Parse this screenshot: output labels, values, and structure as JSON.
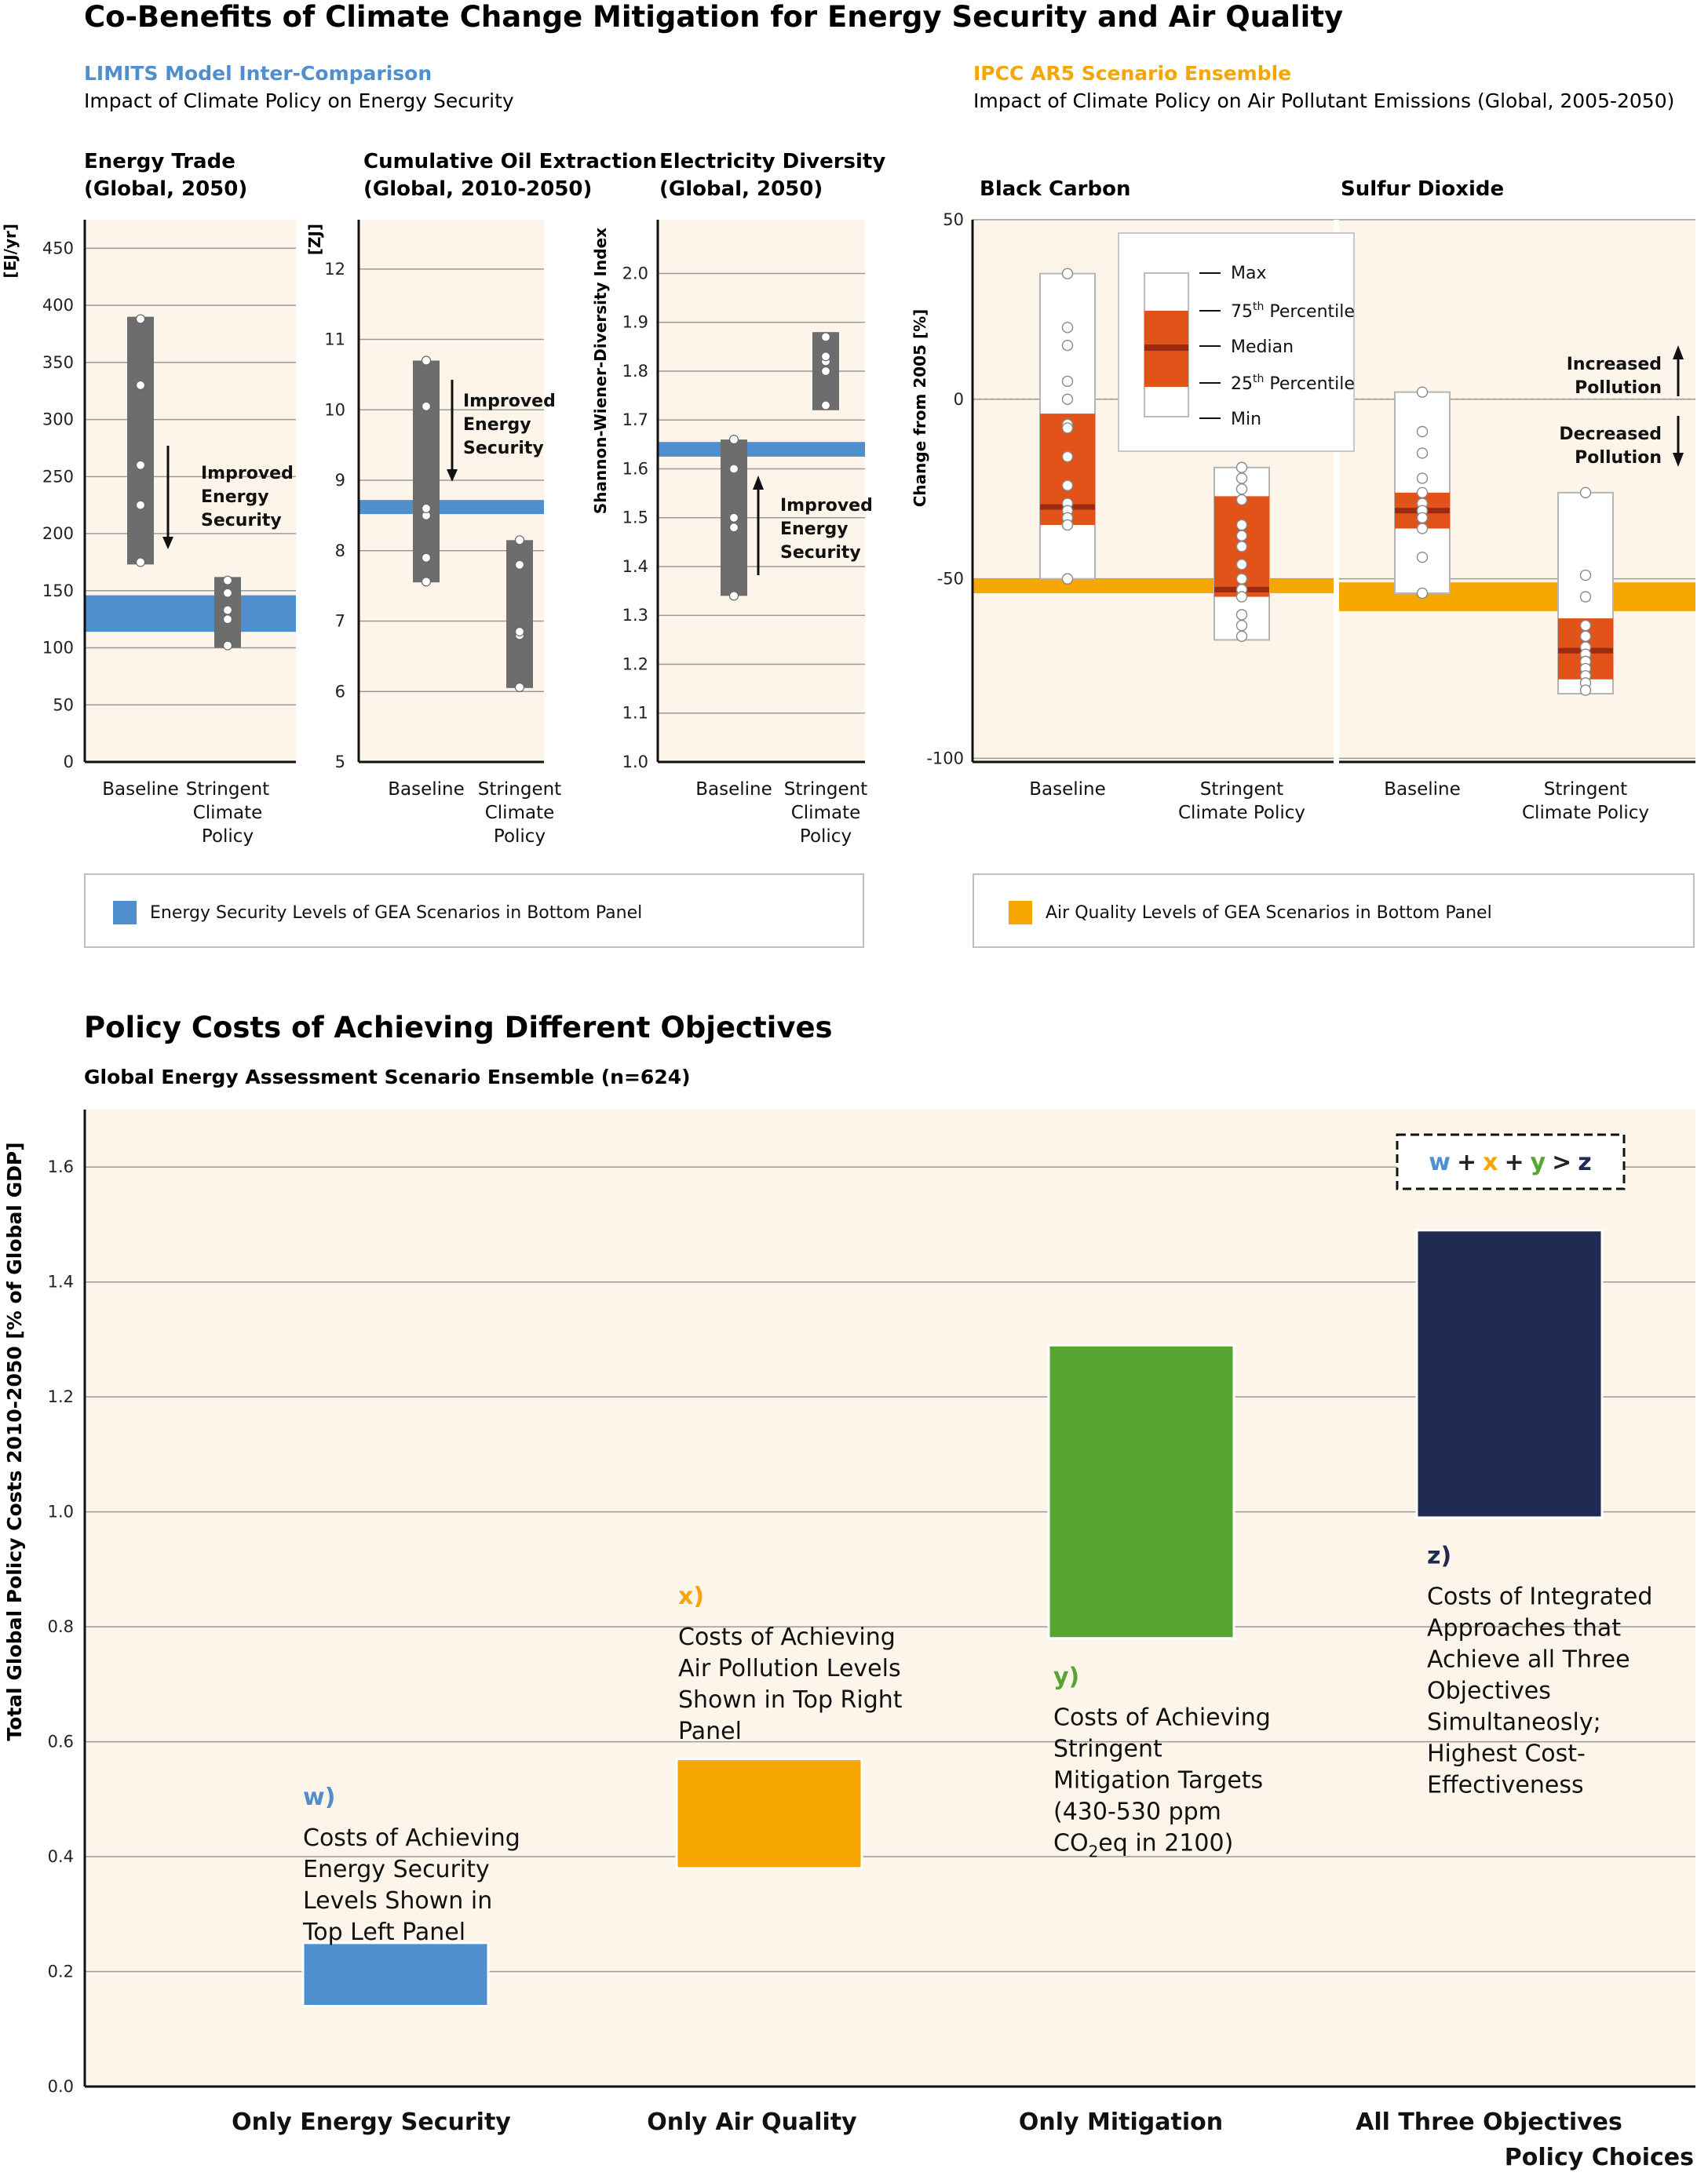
{
  "title": "Co-Benefits of Climate Change Mitigation for Energy Security and Air Quality",
  "left_block": {
    "source": "LIMITS Model Inter-Comparison",
    "subtitle": "Impact of Climate Policy on Energy Security",
    "legend": "Energy Security Levels of GEA Scenarios in Bottom Panel"
  },
  "right_block": {
    "source": "IPCC AR5 Scenario Ensemble",
    "subtitle": "Impact of Climate Policy on Air Pollutant Emissions (Global, 2005-2050)",
    "legend": "Air Quality Levels of GEA Scenarios in Bottom Panel"
  },
  "bottom_block": {
    "title": "Policy Costs of Achieving Different Objectives",
    "subtitle": "Global Energy Assessment Scenario Ensemble (n=624)"
  },
  "annotations": {
    "improved": [
      "Improved",
      "Energy",
      "Security"
    ],
    "increased": [
      "Increased",
      "Pollution"
    ],
    "decreased": [
      "Decreased",
      "Pollution"
    ],
    "boxplot_key": [
      "Max",
      "75",
      "th",
      " Percentile",
      "Median",
      "25",
      "th",
      " Percentile",
      "Min"
    ],
    "cost_letters": {
      "w": "w",
      "x": "x",
      "y": "y",
      "z": "z",
      "plus": "+",
      "gt": ">"
    }
  },
  "colors": {
    "panel_bg": "#fdf5e9",
    "energy_blue": "#4f8fcd",
    "air_orange": "#f5a600",
    "mitigation_green": "#57a532",
    "integrated_navy": "#1f2b52",
    "range_gray": "#6d6d6d",
    "iqr_red": "#e2531a",
    "median_dark": "#9a2b12"
  },
  "chart_data": [
    {
      "type": "range",
      "title": [
        "Energy Trade",
        "(Global, 2050)"
      ],
      "ylabel": "[EJ/yr]",
      "ylim": [
        0,
        475
      ],
      "yticks": [
        0,
        50,
        100,
        150,
        200,
        250,
        300,
        350,
        400,
        450
      ],
      "categories": [
        [
          "Baseline"
        ],
        [
          "Stringent",
          "Climate",
          "Policy"
        ]
      ],
      "series": [
        {
          "category": "Baseline",
          "min": 173,
          "max": 390,
          "points": [
            175,
            225,
            260,
            330,
            388
          ]
        },
        {
          "category": "Stringent Climate Policy",
          "min": 100,
          "max": 162,
          "points": [
            102,
            125,
            133,
            148,
            159
          ]
        }
      ],
      "gea_band": [
        114,
        146
      ],
      "gea_band_extent": "both"
    },
    {
      "type": "range",
      "title": [
        "Cumulative Oil Extraction",
        "(Global, 2010-2050)"
      ],
      "ylabel": "[ZJ]",
      "ylim": [
        5,
        12.7
      ],
      "yticks": [
        5,
        6,
        7,
        8,
        9,
        10,
        11,
        12
      ],
      "categories": [
        [
          "Baseline"
        ],
        [
          "Stringent",
          "Climate",
          "Policy"
        ]
      ],
      "series": [
        {
          "category": "Baseline",
          "min": 7.55,
          "max": 10.7,
          "points": [
            7.56,
            7.9,
            8.5,
            8.6,
            10.05,
            10.7
          ]
        },
        {
          "category": "Stringent Climate Policy",
          "min": 6.05,
          "max": 8.15,
          "points": [
            6.06,
            6.8,
            6.85,
            7.8,
            8.15
          ]
        }
      ],
      "gea_band": [
        8.52,
        8.72
      ],
      "gea_band_extent": "both"
    },
    {
      "type": "range",
      "title": [
        "Electricity Diversity",
        "(Global, 2050)"
      ],
      "ylabel": "Shannon-Wiener-Diversity Index",
      "ylim": [
        1.0,
        2.11
      ],
      "yticks": [
        1.0,
        1.1,
        1.2,
        1.3,
        1.4,
        1.5,
        1.6,
        1.7,
        1.8,
        1.9,
        2.0
      ],
      "categories": [
        [
          "Baseline"
        ],
        [
          "Stringent",
          "Climate",
          "Policy"
        ]
      ],
      "series": [
        {
          "category": "Baseline",
          "min": 1.34,
          "max": 1.66,
          "points": [
            1.34,
            1.48,
            1.5,
            1.6,
            1.66
          ]
        },
        {
          "category": "Stringent Climate Policy",
          "min": 1.72,
          "max": 1.88,
          "points": [
            1.73,
            1.8,
            1.82,
            1.83,
            1.87
          ]
        }
      ],
      "gea_band": [
        1.625,
        1.655
      ],
      "gea_band_extent": "both"
    },
    {
      "type": "boxplot",
      "ylabel": "Change from 2005 [%]",
      "ylim": [
        -101,
        50
      ],
      "yticks": [
        -100,
        -50,
        0,
        50
      ],
      "panels": [
        {
          "title": "Black Carbon",
          "categories": [
            [
              "Baseline"
            ],
            [
              "Stringent",
              "Climate Policy"
            ]
          ],
          "boxes": [
            {
              "category": "Baseline",
              "min": -50,
              "q1": -35,
              "median": -30,
              "q3": -4,
              "max": 35,
              "points": [
                35,
                20,
                15,
                5,
                0,
                -7,
                -8,
                -16,
                -24,
                -29,
                -31,
                -33,
                -35,
                -50
              ]
            },
            {
              "category": "Stringent Climate Policy",
              "min": -67,
              "q1": -55,
              "median": -53,
              "q3": -27,
              "max": -19,
              "points": [
                -19,
                -22,
                -25,
                -28,
                -35,
                -38,
                -41,
                -46,
                -50,
                -53,
                -55,
                -60,
                -63,
                -66
              ]
            }
          ],
          "gea_band": [
            -54,
            -50
          ]
        },
        {
          "title": "Sulfur Dioxide",
          "categories": [
            [
              "Baseline"
            ],
            [
              "Stringent",
              "Climate Policy"
            ]
          ],
          "boxes": [
            {
              "category": "Baseline",
              "min": -54,
              "q1": -36,
              "median": -31,
              "q3": -26,
              "max": 2,
              "points": [
                2,
                -9,
                -15,
                -22,
                -26,
                -29,
                -31,
                -33,
                -36,
                -44,
                -54
              ]
            },
            {
              "category": "Stringent Climate Policy",
              "min": -82,
              "q1": -78,
              "median": -70,
              "q3": -61,
              "max": -26,
              "points": [
                -26,
                -49,
                -55,
                -63,
                -66,
                -69,
                -71,
                -73,
                -75,
                -77,
                -79,
                -81
              ]
            }
          ],
          "gea_band": [
            -59,
            -51
          ]
        }
      ]
    },
    {
      "type": "floating_bar",
      "ylabel": "Total Global Policy Costs 2010-2050 [% of Global GDP]",
      "xlabel": "Policy Choices",
      "ylim": [
        0,
        1.7
      ],
      "yticks": [
        0.0,
        0.2,
        0.4,
        0.6,
        0.8,
        1.0,
        1.2,
        1.4,
        1.6
      ],
      "categories": [
        "Only Energy Security",
        "Only Air Quality",
        "Only Mitigation",
        "All Three Objectives"
      ],
      "bars": [
        {
          "category": "Only Energy Security",
          "letter": "w)",
          "low": 0.14,
          "high": 0.25,
          "description": [
            "Costs of Achieving",
            "Energy Security",
            "Levels Shown in",
            "Top Left Panel"
          ]
        },
        {
          "category": "Only Air Quality",
          "letter": "x)",
          "low": 0.38,
          "high": 0.57,
          "description": [
            "Costs of Achieving",
            "Air Pollution Levels",
            "Shown in Top Right",
            "Panel"
          ]
        },
        {
          "category": "Only Mitigation",
          "letter": "y)",
          "low": 0.78,
          "high": 1.29,
          "description": [
            "Costs of Achieving",
            "Stringent",
            "Mitigation Targets",
            "(430-530 ppm",
            "CO",
            "2",
            "eq in 2100)"
          ]
        },
        {
          "category": "All Three Objectives",
          "letter": "z)",
          "low": 0.99,
          "high": 1.49,
          "description": [
            "Costs of Integrated",
            "Approaches that",
            "Achieve all Three",
            "Objectives",
            "Simultaneosly;",
            "Highest Cost-",
            "Effectiveness"
          ]
        }
      ]
    }
  ]
}
